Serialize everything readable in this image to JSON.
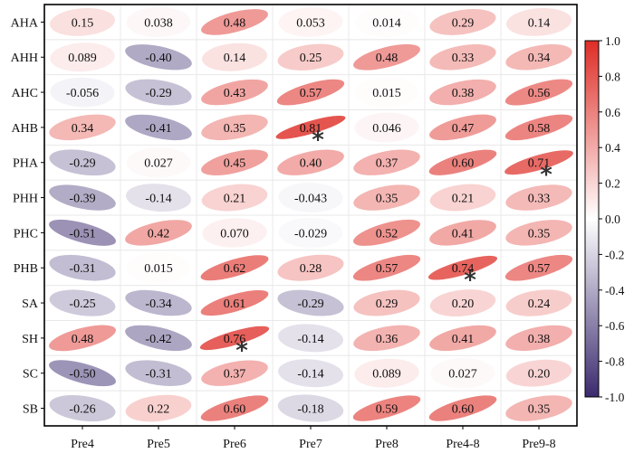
{
  "chart_data": {
    "type": "heatmap",
    "rows": [
      "AHA",
      "AHH",
      "AHC",
      "AHB",
      "PHA",
      "PHH",
      "PHC",
      "PHB",
      "SA",
      "SH",
      "SC",
      "SB"
    ],
    "columns": [
      "Pre4",
      "Pre5",
      "Pre6",
      "Pre7",
      "Pre8",
      "Pre4-8",
      "Pre9-8"
    ],
    "labels": [
      [
        "0.15",
        "0.038",
        "0.48",
        "0.053",
        "0.014",
        "0.29",
        "0.14"
      ],
      [
        "0.089",
        "-0.40",
        "0.14",
        "0.25",
        "0.48",
        "0.33",
        "0.34"
      ],
      [
        "-0.056",
        "-0.29",
        "0.43",
        "0.57",
        "0.015",
        "0.38",
        "0.56"
      ],
      [
        "0.34",
        "-0.41",
        "0.35",
        "0.81",
        "0.046",
        "0.47",
        "0.58"
      ],
      [
        "-0.29",
        "0.027",
        "0.45",
        "0.40",
        "0.37",
        "0.60",
        "0.71"
      ],
      [
        "-0.39",
        "-0.14",
        "0.21",
        "-0.043",
        "0.35",
        "0.21",
        "0.33"
      ],
      [
        "-0.51",
        "0.42",
        "0.070",
        "-0.029",
        "0.52",
        "0.41",
        "0.35"
      ],
      [
        "-0.31",
        "0.015",
        "0.62",
        "0.28",
        "0.57",
        "0.74",
        "0.57"
      ],
      [
        "-0.25",
        "-0.34",
        "0.61",
        "-0.29",
        "0.29",
        "0.20",
        "0.24"
      ],
      [
        "0.48",
        "-0.42",
        "0.76",
        "-0.14",
        "0.36",
        "0.41",
        "0.38"
      ],
      [
        "-0.50",
        "-0.31",
        "0.37",
        "-0.14",
        "0.089",
        "0.027",
        "0.20"
      ],
      [
        "-0.26",
        "0.22",
        "0.60",
        "-0.18",
        "0.59",
        "0.60",
        "0.35"
      ]
    ],
    "significance_marker": "*",
    "significant_cells": [
      [
        3,
        3
      ],
      [
        4,
        6
      ],
      [
        7,
        5
      ],
      [
        9,
        2
      ]
    ],
    "colorbar": {
      "min": -1.0,
      "max": 1.0,
      "ticks": [
        "1.0",
        "0.8",
        "0.6",
        "0.4",
        "0.2",
        "0.0",
        "-0.2",
        "-0.4",
        "-0.6",
        "-0.8",
        "-1.0"
      ],
      "colors": {
        "negative": "#3b2a6e",
        "neutral": "#ffffff",
        "positive": "#de2d26"
      }
    }
  }
}
